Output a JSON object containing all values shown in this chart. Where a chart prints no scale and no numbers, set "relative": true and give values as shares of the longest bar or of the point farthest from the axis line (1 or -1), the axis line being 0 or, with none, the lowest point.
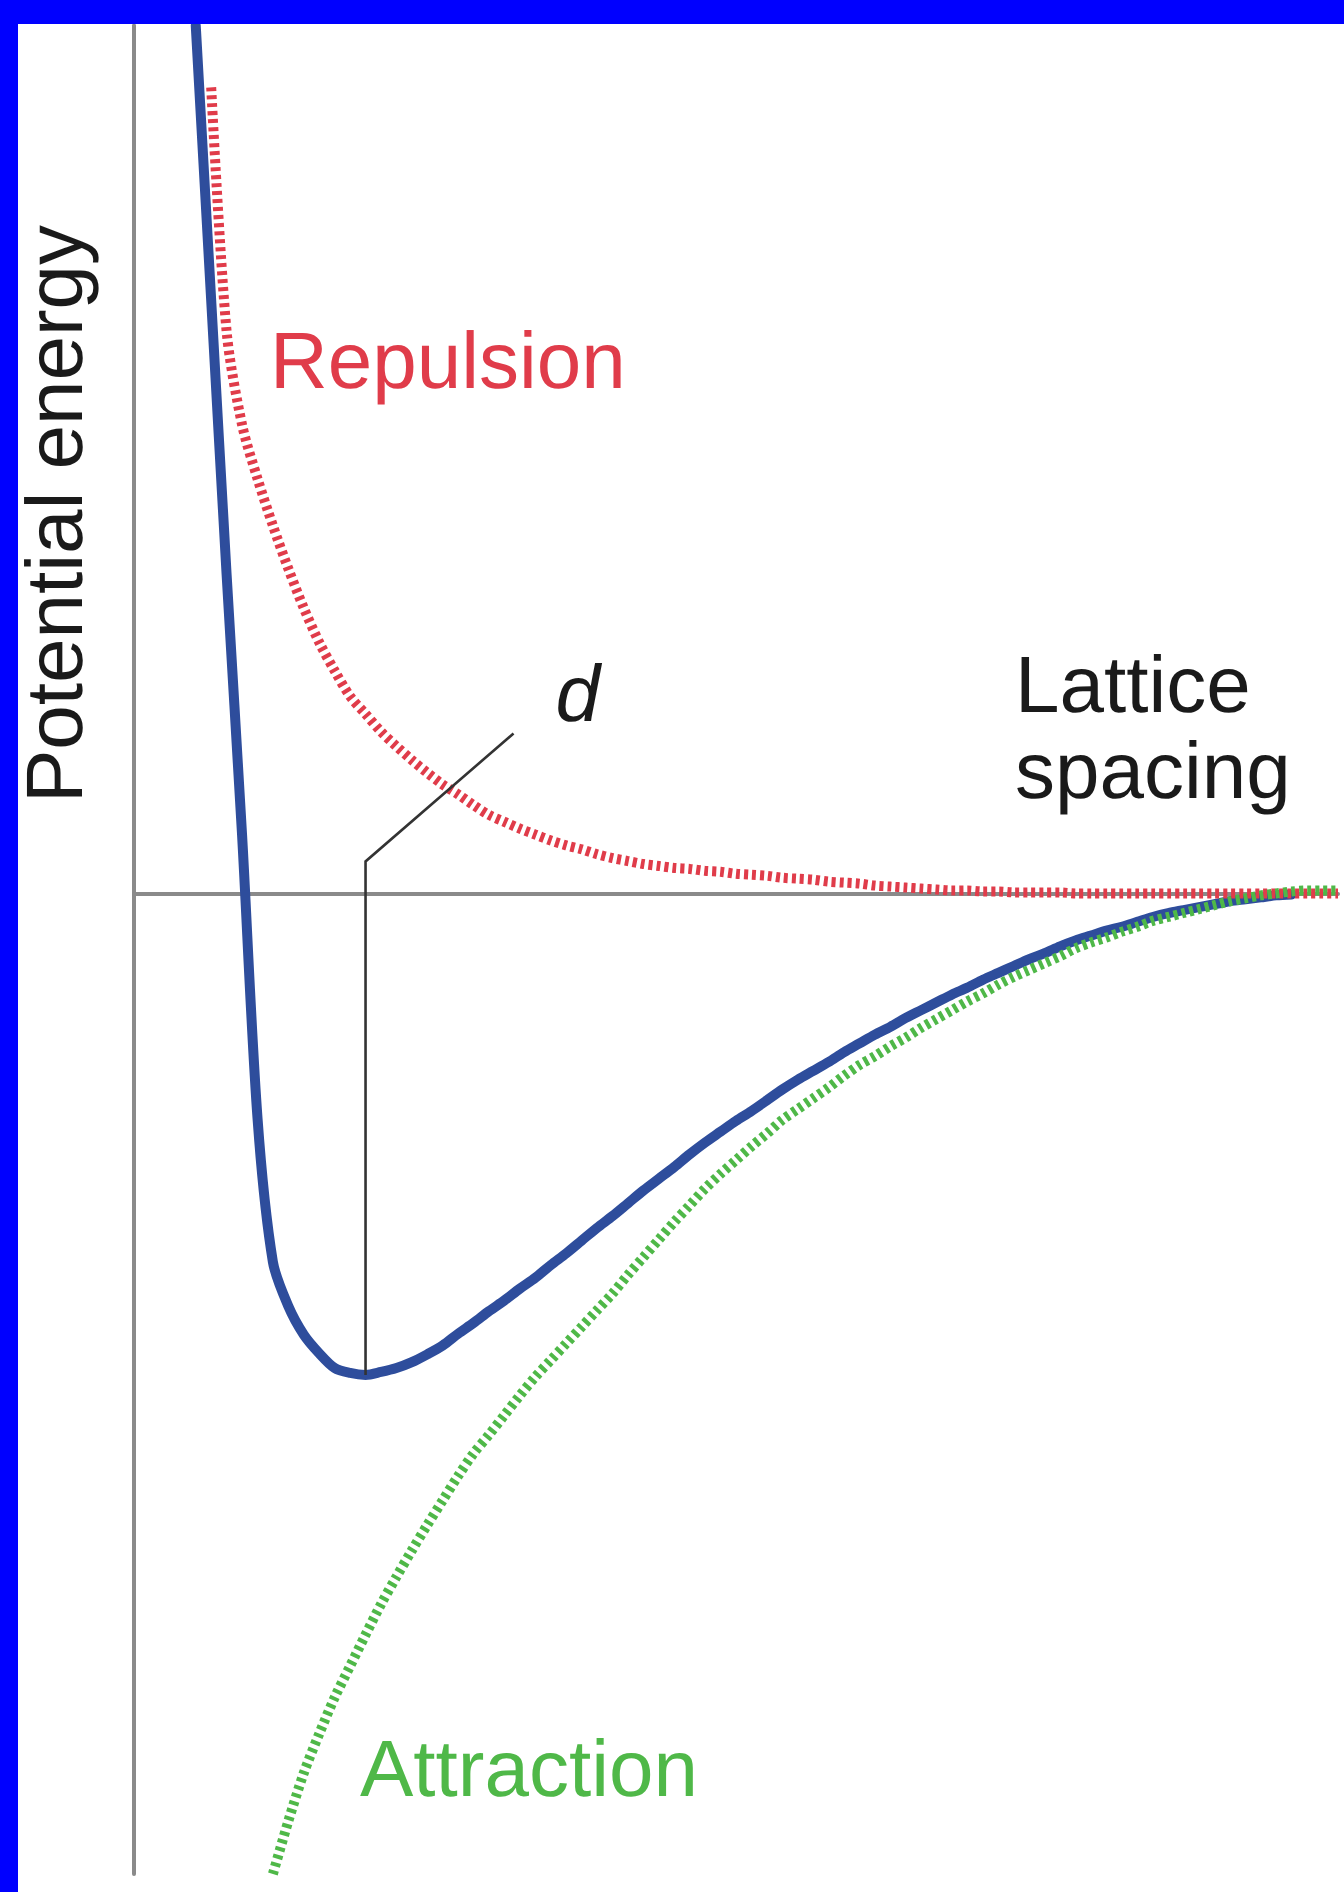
{
  "chart_data": {
    "type": "line",
    "relative": true,
    "xlabel": "Lattice spacing",
    "ylabel": "Potential energy",
    "marker": "none",
    "grid": false,
    "legend": false,
    "categories": [
      null,
      null,
      null,
      null,
      null,
      null,
      null,
      null,
      null,
      null,
      null,
      null,
      null,
      null,
      null,
      null,
      null,
      null,
      null,
      null,
      null,
      null,
      null,
      null,
      null,
      null,
      null,
      null,
      null,
      null,
      null,
      null,
      null,
      null,
      null,
      null,
      null,
      null,
      null,
      null,
      null,
      null,
      null,
      null,
      null,
      null,
      null,
      null,
      null,
      null,
      null,
      null,
      null,
      null,
      null,
      null,
      null,
      null,
      null,
      null,
      null,
      null,
      null,
      null,
      null,
      null,
      null,
      null,
      null,
      null,
      null,
      null,
      null,
      null,
      null,
      null,
      null,
      null,
      null
    ],
    "series": [
      {
        "color": "#2e4d9c",
        "line_style": "solid",
        "values": [
          null,
          null,
          null,
          null,
          0.885,
          0.605,
          0.325,
          0.06,
          -0.229,
          -0.376,
          -0.421,
          -0.45,
          -0.469,
          -0.484,
          -0.489,
          -0.491,
          -0.488,
          -0.484,
          -0.478,
          -0.47,
          -0.461,
          -0.449,
          -0.438,
          -0.426,
          -0.415,
          -0.403,
          -0.392,
          -0.379,
          -0.367,
          -0.354,
          -0.341,
          -0.329,
          -0.316,
          -0.303,
          -0.291,
          -0.279,
          -0.266,
          -0.254,
          -0.243,
          -0.232,
          -0.222,
          -0.211,
          -0.2,
          -0.19,
          -0.181,
          -0.172,
          -0.162,
          -0.153,
          -0.144,
          -0.136,
          -0.127,
          -0.119,
          -0.111,
          -0.103,
          -0.096,
          -0.088,
          -0.081,
          -0.074,
          -0.067,
          -0.061,
          -0.054,
          -0.048,
          -0.043,
          -0.038,
          -0.034,
          -0.029,
          -0.024,
          -0.02,
          -0.017,
          -0.014,
          -0.011,
          -0.008,
          -0.006,
          -0.004,
          -0.002,
          -0.001,
          null,
          null,
          null
        ]
      },
      {
        "name": "Repulsion",
        "color": "#e03c4a",
        "line_style": "dotted",
        "values": [
          null,
          null,
          null,
          null,
          null,
          0.822,
          0.573,
          0.478,
          0.423,
          0.375,
          0.331,
          0.291,
          0.256,
          0.227,
          0.201,
          0.183,
          0.165,
          0.15,
          0.136,
          0.123,
          0.111,
          0.101,
          0.09,
          0.08,
          0.073,
          0.066,
          0.06,
          0.054,
          0.049,
          0.045,
          0.04,
          0.036,
          0.033,
          0.03,
          0.028,
          0.026,
          0.025,
          0.023,
          0.022,
          0.02,
          0.019,
          0.018,
          0.016,
          0.015,
          0.014,
          0.012,
          0.011,
          0.01,
          0.008,
          0.007,
          0.006,
          0.005,
          0.004,
          0.003,
          0.003,
          0.002,
          0.002,
          0.001,
          0.001,
          0.001,
          0.001,
          0,
          0,
          0,
          0,
          0,
          0,
          0,
          0,
          0,
          0,
          0,
          0,
          0,
          0,
          0,
          0,
          0,
          0
        ]
      },
      {
        "name": "Attraction",
        "color": "#4fb848",
        "line_style": "dotted",
        "values": [
          null,
          null,
          null,
          null,
          null,
          null,
          null,
          null,
          null,
          -1,
          -0.946,
          -0.897,
          -0.857,
          -0.82,
          -0.788,
          -0.756,
          -0.725,
          -0.697,
          -0.67,
          -0.644,
          -0.619,
          -0.594,
          -0.571,
          -0.552,
          -0.532,
          -0.512,
          -0.493,
          -0.476,
          -0.459,
          -0.442,
          -0.425,
          -0.408,
          -0.389,
          -0.371,
          -0.353,
          -0.335,
          -0.318,
          -0.301,
          -0.286,
          -0.272,
          -0.258,
          -0.245,
          -0.231,
          -0.22,
          -0.209,
          -0.198,
          -0.186,
          -0.175,
          -0.166,
          -0.156,
          -0.147,
          -0.137,
          -0.128,
          -0.119,
          -0.11,
          -0.102,
          -0.093,
          -0.085,
          -0.078,
          -0.071,
          -0.064,
          -0.056,
          -0.05,
          -0.045,
          -0.039,
          -0.034,
          -0.028,
          -0.024,
          -0.02,
          -0.016,
          -0.012,
          -0.008,
          -0.005,
          -0.002,
          0,
          0.002,
          0.003,
          0.003,
          0.003
        ]
      }
    ],
    "annotations": [
      "d"
    ]
  }
}
